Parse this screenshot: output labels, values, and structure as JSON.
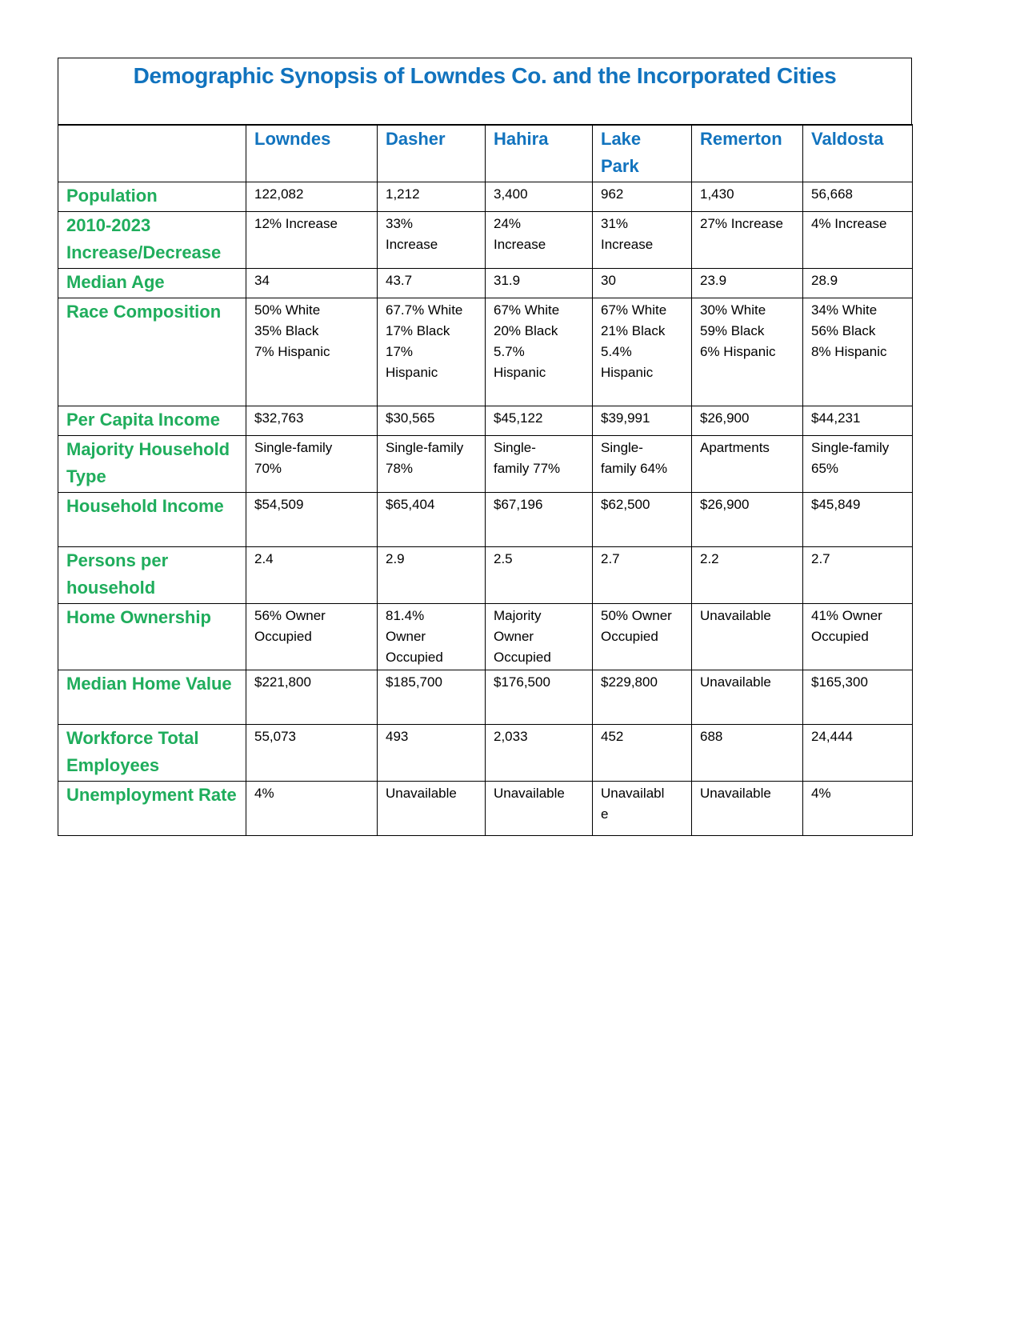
{
  "title": "Demographic Synopsis of Lowndes Co. and the Incorporated Cities",
  "colors": {
    "title": "#1173be",
    "row_labels": "#1fad5c",
    "headers": "#1173be"
  },
  "columns": [
    "Lowndes",
    "Dasher",
    "Hahira",
    "Lake\nPark",
    "Remerton",
    "Valdosta"
  ],
  "rows": [
    {
      "label": "Population",
      "values": [
        "122,082",
        "1,212",
        "3,400",
        "962",
        "1,430",
        "56,668"
      ]
    },
    {
      "label": "2010-2023 Increase/Decrease",
      "values": [
        "12% Increase",
        "33%\nIncrease",
        "24%\nIncrease",
        "31%\nIncrease",
        "27% Increase",
        "4% Increase"
      ]
    },
    {
      "label": "Median Age",
      "values": [
        "34",
        "43.7",
        "31.9",
        "30",
        "23.9",
        "28.9"
      ]
    },
    {
      "label": "Race Composition",
      "values": [
        "50% White\n35% Black\n7% Hispanic",
        "67.7% White\n17% Black\n17%\nHispanic",
        "67% White\n20% Black\n5.7%\nHispanic",
        "67% White\n21% Black\n5.4%\nHispanic",
        "30% White\n59% Black\n6% Hispanic",
        "34% White\n56% Black\n8% Hispanic"
      ]
    },
    {
      "label": "Per Capita Income",
      "values": [
        "$32,763",
        "$30,565",
        "$45,122",
        "$39,991",
        "$26,900",
        "$44,231"
      ]
    },
    {
      "label": "Majority Household Type",
      "values": [
        "Single-family\n70%",
        "Single-family\n78%",
        "Single-\nfamily 77%",
        "Single-\nfamily 64%",
        "Apartments",
        "Single-family\n65%"
      ]
    },
    {
      "label": "Household Income",
      "values": [
        "$54,509",
        "$65,404",
        "$67,196",
        "$62,500",
        "$26,900",
        "$45,849"
      ]
    },
    {
      "label": "Persons per household",
      "values": [
        "2.4",
        "2.9",
        "2.5",
        "2.7",
        "2.2",
        "2.7"
      ]
    },
    {
      "label": "Home Ownership",
      "values": [
        "56% Owner\nOccupied",
        "81.4%\nOwner\nOccupied",
        "Majority\nOwner\nOccupied",
        "50% Owner\nOccupied",
        "Unavailable",
        "41% Owner\nOccupied"
      ]
    },
    {
      "label": "Median Home Value",
      "values": [
        "$221,800",
        "$185,700",
        "$176,500",
        "$229,800",
        "Unavailable",
        "$165,300"
      ]
    },
    {
      "label": "Workforce Total Employees",
      "values": [
        "55,073",
        "493",
        "2,033",
        "452",
        "688",
        "24,444"
      ]
    },
    {
      "label": "Unemployment Rate",
      "values": [
        "4%",
        "Unavailable",
        "Unavailable",
        "Unavailabl\ne",
        "Unavailable",
        "4%"
      ]
    }
  ]
}
